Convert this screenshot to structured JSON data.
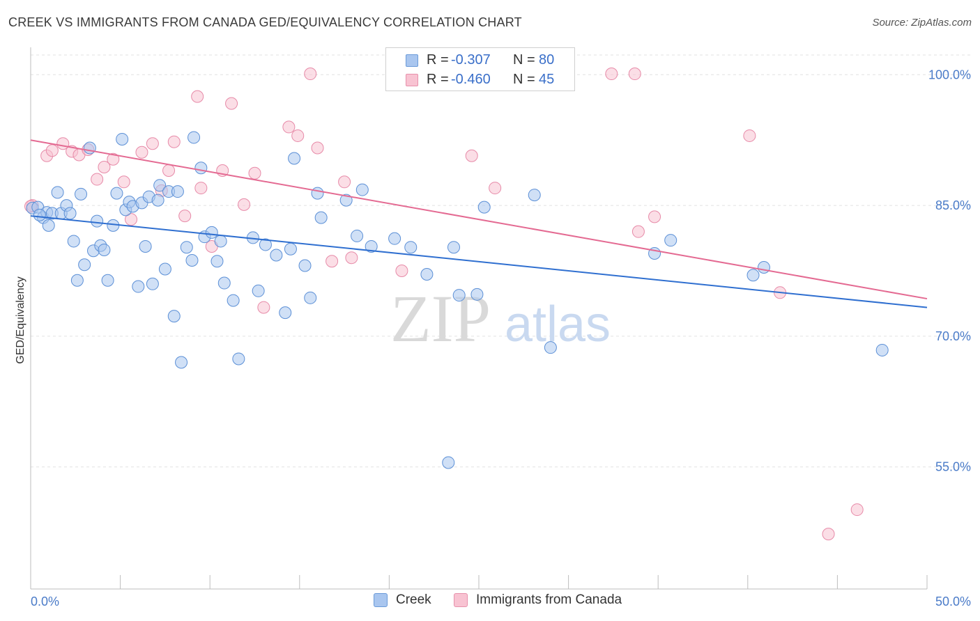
{
  "title": "CREEK VS IMMIGRANTS FROM CANADA GED/EQUIVALENCY CORRELATION CHART",
  "source": "Source: ZipAtlas.com",
  "watermark": {
    "zip": "ZIP",
    "atlas": "atlas"
  },
  "legend": {
    "rows": [
      {
        "r_label": "R =",
        "r_value": "-0.307",
        "n_label": "N =",
        "n_value": "80",
        "color": "#a9c6ef",
        "stroke": "#6a9ad8"
      },
      {
        "r_label": "R =",
        "r_value": "-0.460",
        "n_label": "N =",
        "n_value": "45",
        "color": "#f8c3d2",
        "stroke": "#e790ab"
      }
    ]
  },
  "bottom_legend": [
    "Creek",
    "Immigrants from Canada"
  ],
  "chart_data": {
    "type": "scatter",
    "title": "CREEK VS IMMIGRANTS FROM CANADA GED/EQUIVALENCY CORRELATION CHART",
    "xlabel": "",
    "ylabel": "GED/Equivalency",
    "xlim": [
      0,
      50
    ],
    "ylim": [
      41,
      102.5
    ],
    "x_tick_labels": [
      "0.0%",
      "50.0%"
    ],
    "y_ticks": [
      55,
      70,
      85,
      100
    ],
    "y_tick_labels": [
      "55.0%",
      "70.0%",
      "85.0%",
      "100.0%"
    ],
    "grid": "horizontal dashed",
    "series": [
      {
        "name": "Creek",
        "color": "#a9c6ef",
        "stroke": "#5b8fd6",
        "trend": {
          "x": [
            0,
            50
          ],
          "y": [
            83.8,
            73.3
          ],
          "color": "#2f6fd0"
        },
        "points": [
          [
            0.1,
            84.7
          ],
          [
            0.4,
            84.8
          ],
          [
            0.7,
            83.6
          ],
          [
            0.9,
            84.2
          ],
          [
            1.0,
            82.7
          ],
          [
            1.2,
            84.1
          ],
          [
            1.5,
            86.5
          ],
          [
            1.7,
            84.1
          ],
          [
            2.0,
            85.0
          ],
          [
            2.2,
            84.1
          ],
          [
            2.4,
            80.9
          ],
          [
            2.6,
            76.4
          ],
          [
            2.8,
            86.3
          ],
          [
            3.0,
            78.2
          ],
          [
            3.3,
            91.6
          ],
          [
            3.5,
            79.8
          ],
          [
            3.7,
            83.2
          ],
          [
            3.9,
            80.4
          ],
          [
            4.1,
            79.9
          ],
          [
            4.3,
            76.4
          ],
          [
            4.6,
            82.7
          ],
          [
            4.8,
            86.4
          ],
          [
            5.1,
            92.6
          ],
          [
            5.3,
            84.5
          ],
          [
            5.5,
            85.4
          ],
          [
            5.7,
            84.9
          ],
          [
            6.0,
            75.7
          ],
          [
            6.2,
            85.3
          ],
          [
            6.4,
            80.3
          ],
          [
            6.6,
            86.0
          ],
          [
            6.8,
            76.0
          ],
          [
            7.1,
            85.6
          ],
          [
            7.2,
            87.3
          ],
          [
            7.5,
            77.7
          ],
          [
            7.7,
            86.6
          ],
          [
            8.0,
            72.3
          ],
          [
            8.2,
            86.6
          ],
          [
            8.4,
            67.0
          ],
          [
            8.7,
            80.2
          ],
          [
            9.0,
            78.7
          ],
          [
            9.1,
            92.8
          ],
          [
            9.5,
            89.3
          ],
          [
            9.7,
            81.4
          ],
          [
            10.1,
            81.9
          ],
          [
            10.4,
            78.6
          ],
          [
            10.6,
            80.9
          ],
          [
            10.8,
            76.1
          ],
          [
            11.3,
            74.1
          ],
          [
            11.6,
            67.4
          ],
          [
            12.4,
            81.3
          ],
          [
            12.7,
            75.2
          ],
          [
            13.1,
            80.5
          ],
          [
            13.7,
            79.3
          ],
          [
            14.2,
            72.7
          ],
          [
            14.5,
            80.0
          ],
          [
            14.7,
            90.4
          ],
          [
            15.3,
            78.1
          ],
          [
            15.6,
            74.4
          ],
          [
            16.0,
            86.4
          ],
          [
            16.2,
            83.6
          ],
          [
            17.6,
            85.6
          ],
          [
            18.2,
            81.5
          ],
          [
            18.5,
            86.8
          ],
          [
            19.0,
            80.3
          ],
          [
            20.3,
            81.2
          ],
          [
            21.2,
            80.2
          ],
          [
            22.1,
            77.1
          ],
          [
            23.3,
            55.5
          ],
          [
            23.6,
            80.2
          ],
          [
            23.9,
            74.7
          ],
          [
            24.9,
            74.8
          ],
          [
            25.3,
            84.8
          ],
          [
            28.1,
            86.2
          ],
          [
            29.0,
            68.7
          ],
          [
            34.8,
            79.5
          ],
          [
            35.7,
            81.0
          ],
          [
            40.3,
            77.0
          ],
          [
            40.9,
            77.9
          ],
          [
            47.5,
            68.4
          ],
          [
            0.5,
            83.9
          ]
        ]
      },
      {
        "name": "Immigrants from Canada",
        "color": "#f8c3d2",
        "stroke": "#e78aa8",
        "trend": {
          "x": [
            0,
            50
          ],
          "y": [
            92.5,
            74.3
          ],
          "color": "#e46a92"
        },
        "points": [
          [
            0.1,
            85.0
          ],
          [
            0.9,
            90.7
          ],
          [
            1.2,
            91.3
          ],
          [
            1.8,
            92.1
          ],
          [
            2.3,
            91.2
          ],
          [
            2.7,
            90.8
          ],
          [
            3.2,
            91.4
          ],
          [
            3.7,
            88.0
          ],
          [
            4.1,
            89.4
          ],
          [
            4.6,
            90.3
          ],
          [
            5.2,
            87.7
          ],
          [
            5.6,
            83.4
          ],
          [
            6.2,
            91.1
          ],
          [
            6.8,
            92.1
          ],
          [
            7.3,
            86.7
          ],
          [
            7.7,
            89.0
          ],
          [
            8.0,
            92.3
          ],
          [
            8.6,
            83.8
          ],
          [
            9.3,
            97.5
          ],
          [
            9.5,
            87.0
          ],
          [
            10.1,
            80.3
          ],
          [
            10.7,
            89.0
          ],
          [
            11.2,
            96.7
          ],
          [
            11.9,
            85.1
          ],
          [
            12.5,
            88.7
          ],
          [
            13.0,
            73.3
          ],
          [
            14.4,
            94.0
          ],
          [
            14.9,
            93.0
          ],
          [
            15.6,
            100.1
          ],
          [
            16.0,
            91.6
          ],
          [
            16.8,
            78.6
          ],
          [
            17.5,
            87.7
          ],
          [
            17.9,
            79.0
          ],
          [
            20.7,
            77.5
          ],
          [
            24.6,
            90.7
          ],
          [
            25.9,
            87.0
          ],
          [
            32.4,
            100.1
          ],
          [
            33.7,
            100.1
          ],
          [
            33.9,
            82.0
          ],
          [
            34.8,
            83.7
          ],
          [
            40.1,
            93.0
          ],
          [
            41.8,
            75.0
          ],
          [
            44.5,
            47.3
          ],
          [
            46.1,
            50.1
          ],
          [
            0.0,
            84.9
          ]
        ]
      }
    ]
  }
}
